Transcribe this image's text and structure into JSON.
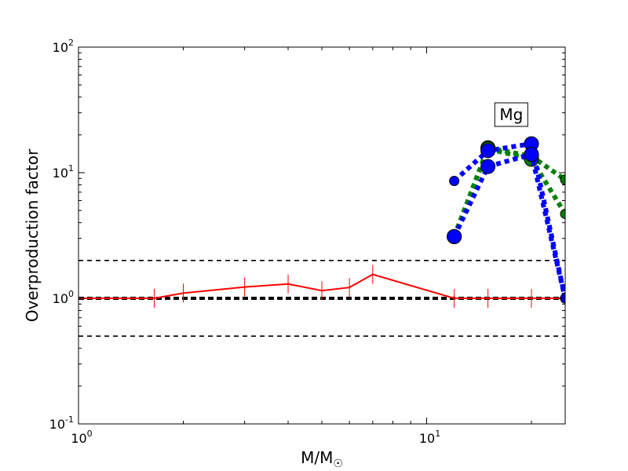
{
  "chart_data": {
    "type": "line",
    "title": "",
    "xscale": "log",
    "yscale": "log",
    "xlim": [
      1,
      25
    ],
    "ylim": [
      0.1,
      100
    ],
    "xlabel": "M/M",
    "xlabel_sub": "☉",
    "ylabel": "Overproduction factor",
    "x_ticks": [
      {
        "value": 1,
        "base": "10",
        "exp": "0"
      },
      {
        "value": 10,
        "base": "10",
        "exp": "1"
      }
    ],
    "y_ticks": [
      {
        "value": 0.1,
        "base": "10",
        "exp": "-1"
      },
      {
        "value": 1,
        "base": "10",
        "exp": "0"
      },
      {
        "value": 10,
        "base": "10",
        "exp": "1"
      },
      {
        "value": 100,
        "base": "10",
        "exp": "2"
      }
    ],
    "annotation": {
      "text": "Mg",
      "x": 17.5,
      "y": 29
    },
    "reference_lines": [
      {
        "y": 2.0,
        "style": "dashed",
        "color": "#000000",
        "weight": "thin"
      },
      {
        "y": 1.0,
        "style": "dashed",
        "color": "#000000",
        "weight": "thick"
      },
      {
        "y": 0.5,
        "style": "dashed",
        "color": "#000000",
        "weight": "thin"
      }
    ],
    "series": [
      {
        "style": "solid",
        "color": "#ff0000",
        "marker": "errorbar",
        "points": [
          {
            "x": 1.0,
            "y": 1.0
          },
          {
            "x": 1.65,
            "y": 1.0
          },
          {
            "x": 2.0,
            "y": 1.1
          },
          {
            "x": 3.0,
            "y": 1.23
          },
          {
            "x": 4.0,
            "y": 1.3
          },
          {
            "x": 5.0,
            "y": 1.15
          },
          {
            "x": 6.0,
            "y": 1.22
          },
          {
            "x": 7.0,
            "y": 1.55
          },
          {
            "x": 12.0,
            "y": 1.0
          },
          {
            "x": 15.0,
            "y": 1.0
          },
          {
            "x": 20.0,
            "y": 1.0
          },
          {
            "x": 25.0,
            "y": 1.0
          }
        ]
      },
      {
        "style": "dotted",
        "color": "#008000",
        "marker": "circle",
        "points": [
          {
            "x": 12.0,
            "y": 3.1
          },
          {
            "x": 15.0,
            "y": 15.8
          },
          {
            "x": 20.0,
            "y": 13.5
          },
          {
            "x": 25.0,
            "y": 8.8
          }
        ]
      },
      {
        "style": "dotted",
        "color": "#008000",
        "marker": "circle",
        "points": [
          {
            "x": 12.0,
            "y": 3.1
          },
          {
            "x": 15.0,
            "y": 15.5
          },
          {
            "x": 20.0,
            "y": 12.8
          },
          {
            "x": 25.0,
            "y": 4.7
          }
        ]
      },
      {
        "style": "dotted",
        "color": "#0000ff",
        "marker": "circle",
        "points": [
          {
            "x": 12.0,
            "y": 8.6
          },
          {
            "x": 15.0,
            "y": 15.0
          },
          {
            "x": 20.0,
            "y": 17.0
          },
          {
            "x": 25.0,
            "y": 1.0
          }
        ]
      },
      {
        "style": "dotted",
        "color": "#0000ff",
        "marker": "circle",
        "points": [
          {
            "x": 12.0,
            "y": 3.1
          },
          {
            "x": 15.0,
            "y": 11.2
          },
          {
            "x": 20.0,
            "y": 14.0
          },
          {
            "x": 25.0,
            "y": 1.0
          }
        ]
      }
    ]
  }
}
